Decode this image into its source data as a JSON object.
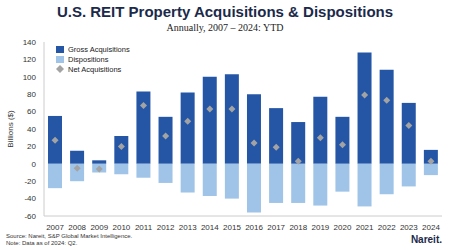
{
  "chart_data": {
    "type": "bar",
    "title": "U.S. REIT Property Acquisitions & Dispositions",
    "subtitle": "Annually, 2007 – 2024: YTD",
    "y_label": "Billions ($)",
    "categories": [
      "2007",
      "2008",
      "2009",
      "2010",
      "2011",
      "2012",
      "2013",
      "2014",
      "2015",
      "2016",
      "2017",
      "2018",
      "2019",
      "2020",
      "2021",
      "2022",
      "2023",
      "2024"
    ],
    "series": [
      {
        "name": "Gross Acquisitions",
        "type": "bar",
        "color": "#2456a5",
        "values": [
          55,
          15,
          4,
          32,
          83,
          54,
          82,
          100,
          103,
          80,
          64,
          48,
          77,
          54,
          128,
          108,
          70,
          16
        ]
      },
      {
        "name": "Dispositions",
        "type": "bar",
        "color": "#9fc4e8",
        "values": [
          -28,
          -20,
          -10,
          -12,
          -16,
          -22,
          -33,
          -37,
          -40,
          -56,
          -45,
          -45,
          -48,
          -32,
          -49,
          -35,
          -26,
          -13
        ]
      },
      {
        "name": "Net Acquisitions",
        "type": "scatter",
        "marker": "diamond",
        "color": "#a3a3a3",
        "values": [
          27,
          -5,
          -6,
          20,
          67,
          32,
          49,
          63,
          63,
          24,
          19,
          3,
          30,
          22,
          79,
          73,
          44,
          3
        ]
      }
    ],
    "stacked": true,
    "ylim": [
      -60,
      140
    ],
    "yticks": [
      -60,
      -40,
      -20,
      0,
      20,
      40,
      60,
      80,
      100,
      120,
      140
    ],
    "grid": false,
    "legend": "top-left",
    "annotations": [
      "Source: Nareit, S&P Global Market Intelligence.",
      "Note: Data as of 2024: Q2.",
      "Nareit."
    ]
  }
}
